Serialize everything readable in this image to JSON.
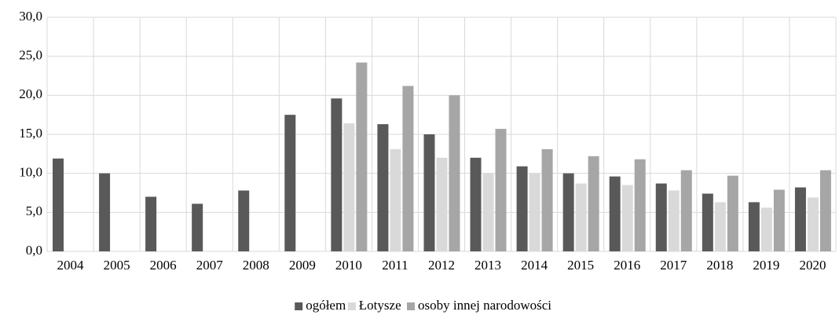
{
  "chart_data": {
    "type": "bar",
    "categories": [
      "2004",
      "2005",
      "2006",
      "2007",
      "2008",
      "2009",
      "2010",
      "2011",
      "2012",
      "2013",
      "2014",
      "2015",
      "2016",
      "2017",
      "2018",
      "2019",
      "2020"
    ],
    "series": [
      {
        "name": "ogółem",
        "color": "#595959",
        "values": [
          11.9,
          10.0,
          7.0,
          6.1,
          7.8,
          17.5,
          19.6,
          16.3,
          15.0,
          12.0,
          10.9,
          10.0,
          9.6,
          8.7,
          7.4,
          6.3,
          8.2
        ]
      },
      {
        "name": "Łotysze",
        "color": "#d9d9d9",
        "values": [
          null,
          null,
          null,
          null,
          null,
          null,
          16.4,
          13.1,
          12.0,
          10.0,
          10.0,
          8.7,
          8.5,
          7.8,
          6.3,
          5.6,
          6.9
        ]
      },
      {
        "name": "osoby innej narodowości",
        "color": "#a6a6a6",
        "values": [
          null,
          null,
          null,
          null,
          null,
          null,
          24.2,
          21.2,
          20.0,
          15.7,
          13.1,
          12.2,
          11.8,
          10.4,
          9.7,
          7.9,
          10.4
        ]
      }
    ],
    "ylim": [
      0,
      30
    ],
    "yticks": [
      {
        "value": 0,
        "label": "0,0"
      },
      {
        "value": 5,
        "label": "5,0"
      },
      {
        "value": 10,
        "label": "10,0"
      },
      {
        "value": 15,
        "label": "15,0"
      },
      {
        "value": 20,
        "label": "20,0"
      },
      {
        "value": 25,
        "label": "25,0"
      },
      {
        "value": 30,
        "label": "30,0"
      }
    ],
    "grid": true,
    "legend": "bottom"
  }
}
